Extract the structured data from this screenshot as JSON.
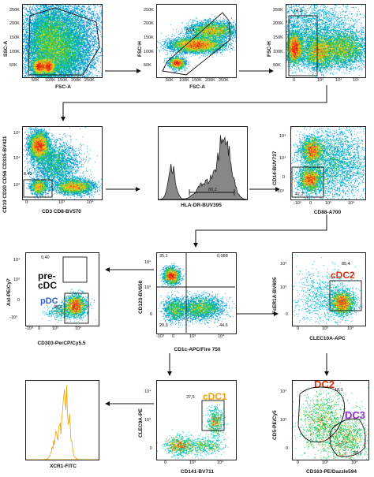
{
  "panels": {
    "p1": {
      "y_label": "SSC-A",
      "x_label": "FSC-A",
      "gate": "41,2",
      "x_ticks": [
        "0",
        "50K",
        "100K",
        "150K",
        "200K",
        "250K"
      ],
      "y_ticks": [
        "50K",
        "100K",
        "150K",
        "200K",
        "250K"
      ]
    },
    "p2": {
      "y_label": "FSC-H",
      "x_label": "FSC-A",
      "gate": "86,4",
      "x_ticks": [
        "0",
        "50K",
        "100K",
        "150K",
        "200K",
        "250K"
      ],
      "y_ticks": [
        "50K",
        "100K",
        "150K",
        "200K",
        "250K"
      ]
    },
    "p3": {
      "y_label": "FSC-H",
      "x_label": "",
      "gate": "74,2",
      "x_ticks": [
        "0",
        "10³",
        "10⁴",
        "10⁵"
      ],
      "y_ticks": [
        "50K",
        "100K",
        "150K",
        "200K",
        "250K"
      ]
    },
    "p4": {
      "y_label": "CD19 CD20 CD56 CD335-BV421",
      "x_label": "CD3 CD8-BV570",
      "gate": "6,42",
      "x_ticks": [
        "0",
        "10³",
        "10⁴"
      ],
      "y_ticks": [
        "10³",
        "10⁴",
        "10⁵"
      ]
    },
    "p5": {
      "y_label": "",
      "x_label": "HLA-DR-BUV395",
      "gate": "80,2"
    },
    "p6": {
      "y_label": "CD14-BUV737",
      "x_label": "CD88-A700",
      "gate": "47,2",
      "x_ticks": [
        "-10³",
        "0",
        "10³",
        "10⁴"
      ],
      "y_ticks": [
        "-10³",
        "0",
        "10³",
        "10⁴"
      ]
    },
    "p7": {
      "y_label": "Axl-PE/Cy7",
      "x_label": "CD303-PerCP/Cy5.5",
      "gate_top": "0,40",
      "gate_pdc": "98,3",
      "pop_predc": "pre-\ncDC",
      "pop_pdc": "pDC",
      "x_ticks": [
        "-10³",
        "0",
        "10³",
        "10⁴"
      ],
      "y_ticks": [
        "-10³",
        "0",
        "10³",
        "10⁴"
      ]
    },
    "p8": {
      "y_label": "CD123-BV650",
      "x_label": "CD1c-APC/Fire 750",
      "q1": "35,1",
      "q2": "0,088",
      "q3": "20,3",
      "q4": "44,6",
      "x_ticks": [
        "-10³",
        "0",
        "10³",
        "10⁴"
      ],
      "y_ticks": [
        "0",
        "10³",
        "10⁴"
      ]
    },
    "p9": {
      "y_label": "FεER1A-BV605",
      "x_label": "CLEC10A-APC",
      "gate": "85,4",
      "pop": "cDC2",
      "x_ticks": [
        "0",
        "10³",
        "10⁴"
      ],
      "y_ticks": [
        "0",
        "10³",
        "10⁴"
      ]
    },
    "p10": {
      "y_label": "",
      "x_label": "XCR1-FITC"
    },
    "p11": {
      "y_label": "CLEC9A-PE",
      "x_label": "CD141-BV711",
      "gate": "37,5",
      "pop": "cDC1",
      "x_ticks": [
        "0",
        "10³",
        "10⁴"
      ],
      "y_ticks": [
        "0",
        "10³",
        "10⁴"
      ]
    },
    "p12": {
      "y_label": "CD5-PE/Cy5",
      "x_label": "CD163-PE/Dazzle594",
      "gate_dc2": "18,1",
      "gate_dc3": "35,1",
      "pop_dc2": "DC2",
      "pop_dc3": "DC3",
      "x_ticks": [
        "0",
        "10³",
        "10⁴"
      ],
      "y_ticks": [
        "0",
        "10³",
        "10⁴"
      ]
    }
  },
  "colors": {
    "cdc_orange": "#f0a000",
    "cdc2_red": "#e03010",
    "dc2_red": "#e03010",
    "dc3_purple": "#9a2fd0",
    "pdc_blue": "#2f5fd0",
    "histogram_orange": "#f0a000"
  }
}
